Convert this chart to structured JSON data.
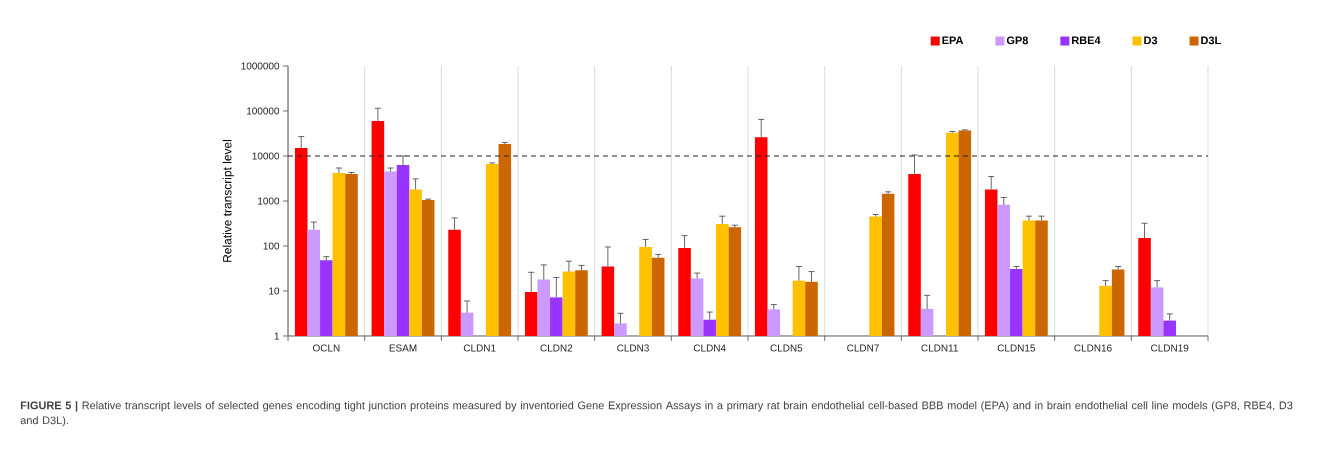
{
  "chart_data": {
    "type": "bar",
    "ylabel": "Relative transcript level",
    "categories": [
      "OCLN",
      "ESAM",
      "CLDN1",
      "CLDN2",
      "CLDN3",
      "CLDN4",
      "CLDN5",
      "CLDN7",
      "CLDN11",
      "CLDN15",
      "CLDN16",
      "CLDN19"
    ],
    "series": [
      {
        "name": "EPA",
        "color": "#ff0000",
        "values": [
          15000,
          60000,
          230,
          9.5,
          35,
          90,
          26000,
          null,
          4000,
          1800,
          null,
          150
        ],
        "errors": [
          [
            15000,
            27000
          ],
          [
            60000,
            115000
          ],
          [
            230,
            420
          ],
          [
            9.5,
            26
          ],
          [
            35,
            95
          ],
          [
            90,
            170
          ],
          [
            26000,
            65000
          ],
          null,
          [
            4000,
            10500
          ],
          [
            1800,
            3500
          ],
          null,
          [
            150,
            320
          ]
        ]
      },
      {
        "name": "GP8",
        "color": "#cc99ff",
        "values": [
          230,
          4500,
          3.3,
          18,
          1.9,
          19,
          3.9,
          null,
          4,
          820,
          null,
          12
        ],
        "errors": [
          [
            230,
            340
          ],
          [
            4500,
            5400
          ],
          [
            3.3,
            6
          ],
          [
            18,
            38
          ],
          [
            1.9,
            3.2
          ],
          [
            19,
            25
          ],
          [
            3.9,
            5
          ],
          null,
          [
            4,
            8
          ],
          [
            820,
            1200
          ],
          null,
          [
            12,
            17
          ]
        ]
      },
      {
        "name": "RBE4",
        "color": "#9933ff",
        "values": [
          48,
          6300,
          null,
          7.2,
          null,
          2.3,
          null,
          null,
          null,
          31,
          null,
          2.2
        ],
        "errors": [
          [
            48,
            58
          ],
          [
            6300,
            10000
          ],
          null,
          [
            7.2,
            20
          ],
          null,
          [
            2.3,
            3.4
          ],
          null,
          null,
          null,
          [
            31,
            35
          ],
          null,
          [
            2.2,
            3.1
          ]
        ]
      },
      {
        "name": "D3",
        "color": "#ffc000",
        "values": [
          4200,
          1800,
          6600,
          27,
          95,
          310,
          17,
          450,
          33000,
          370,
          13,
          null
        ],
        "errors": [
          [
            4200,
            5400
          ],
          [
            1800,
            3100
          ],
          [
            6600,
            7000
          ],
          [
            27,
            46
          ],
          [
            95,
            140
          ],
          [
            310,
            460
          ],
          [
            17,
            35
          ],
          [
            450,
            500
          ],
          [
            33000,
            35000
          ],
          [
            370,
            460
          ],
          [
            13,
            17
          ],
          null
        ]
      },
      {
        "name": "D3L",
        "color": "#cc6600",
        "values": [
          4000,
          1050,
          18500,
          29,
          55,
          260,
          16,
          1450,
          37000,
          370,
          30,
          null
        ],
        "errors": [
          [
            4000,
            4300
          ],
          [
            1050,
            1100
          ],
          [
            18500,
            20000
          ],
          [
            29,
            37
          ],
          [
            55,
            65
          ],
          [
            260,
            290
          ],
          [
            16,
            27
          ],
          [
            1450,
            1600
          ],
          [
            37000,
            38000
          ],
          [
            370,
            460
          ],
          [
            30,
            35
          ],
          null
        ]
      }
    ],
    "log": true,
    "ylim": [
      1,
      1000000
    ],
    "yticks": [
      1,
      10,
      100,
      1000,
      10000,
      100000,
      1000000
    ],
    "grid": "x",
    "legend": "top right",
    "ref_lines": [
      {
        "axis": "y",
        "value": 10000,
        "line_style": "dashed"
      }
    ],
    "annotations": [
      "**FIGURE 5 |** Relative transcript levels of selected genes encoding tight junction proteins measured by inventoried Gene Expression Assays in a primary rat brain endothelial cell-based BBB model (EPA) and in brain endothelial cell line models (GP8, RBE4, D3 and D3L)."
    ]
  }
}
